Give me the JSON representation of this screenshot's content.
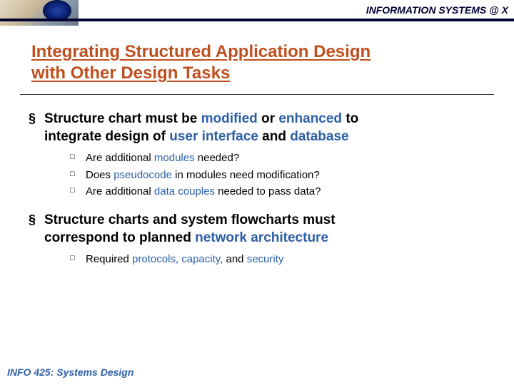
{
  "header": {
    "text": "INFORMATION SYSTEMS @ X"
  },
  "title_line1": "Integrating Structured Application Design",
  "title_line2": "with Other Design Tasks",
  "bullets": [
    {
      "pre1": "Structure chart must be ",
      "hl1": "modified",
      "mid1": " or ",
      "hl2": "enhanced",
      "post1": " to",
      "pre2": "integrate design of ",
      "hl3": "user interface",
      "mid2": " and ",
      "hl4": "database",
      "post2": "",
      "subs": [
        {
          "pre": "Are additional ",
          "hl": "modules",
          "post": " needed?"
        },
        {
          "pre": "Does ",
          "hl": "pseudocode",
          "post": " in modules need modification?"
        },
        {
          "pre": "Are additional ",
          "hl": "data couples",
          "post": " needed to pass data?"
        }
      ]
    },
    {
      "pre1": "Structure charts and system flowcharts must",
      "hl1": "",
      "mid1": "",
      "hl2": "",
      "post1": "",
      "pre2": "correspond to planned ",
      "hl3": "network architecture",
      "mid2": "",
      "hl4": "",
      "post2": "",
      "subs": [
        {
          "pre": "Required ",
          "hl": "protocols, capacity,",
          "post": " and ",
          "hl2": "security",
          "post2": ""
        }
      ]
    }
  ],
  "footer": "INFO 425: Systems Design",
  "colors": {
    "accent": "#bf4f1f",
    "link": "#2c5fa8",
    "navy": "#000033"
  }
}
